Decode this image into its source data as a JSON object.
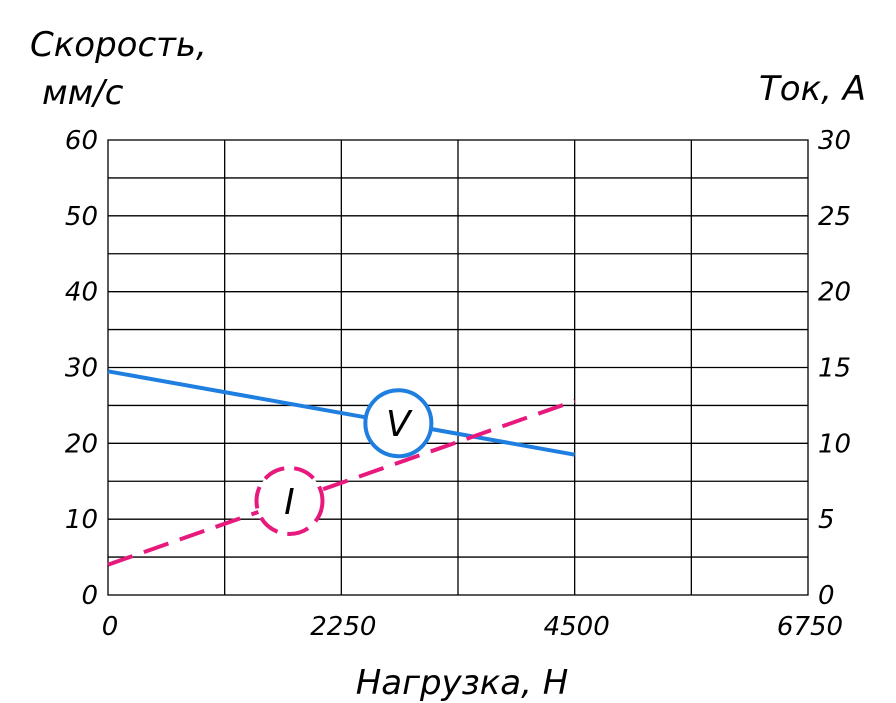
{
  "chart_data": {
    "type": "line",
    "xlabel": "Нагрузка, Н",
    "ylabel_left": [
      "Скорость,",
      "мм/с"
    ],
    "ylabel_right": "Ток, А",
    "x_ticks": [
      "0",
      "2250",
      "4500",
      "6750"
    ],
    "y_left_ticks": [
      "0",
      "10",
      "20",
      "30",
      "40",
      "50",
      "60"
    ],
    "y_right_ticks": [
      "0",
      "5",
      "10",
      "15",
      "20",
      "25",
      "30"
    ],
    "xlim": [
      0,
      6750
    ],
    "ylim_left": [
      0,
      60
    ],
    "ylim_right": [
      0,
      30
    ],
    "grid": true,
    "series": [
      {
        "name": "V",
        "axis": "left",
        "color": "#1f7fe0",
        "style": "solid",
        "x": [
          0,
          4500
        ],
        "y": [
          29.5,
          18.5
        ],
        "marker_x": 2800
      },
      {
        "name": "I",
        "axis": "right",
        "color": "#e8197d",
        "style": "dashed",
        "x": [
          0,
          4500
        ],
        "y": [
          2.0,
          12.8
        ],
        "marker_x": 1750
      }
    ]
  }
}
